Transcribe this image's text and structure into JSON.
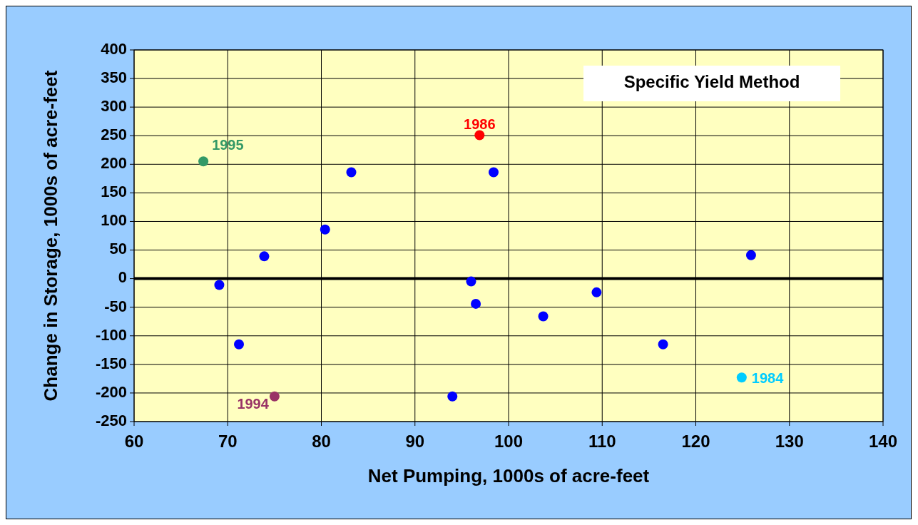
{
  "chart_data": {
    "type": "scatter",
    "xlabel": "Net Pumping, 1000s of acre-feet",
    "ylabel": "Change in Storage, 1000s of acre-feet",
    "annotations": [
      "Specific Yield Method"
    ],
    "xlim": [
      60,
      140
    ],
    "xticks": [
      60,
      70,
      80,
      90,
      100,
      110,
      120,
      130,
      140
    ],
    "ylim": [
      -250,
      400
    ],
    "yticks": [
      -250,
      -200,
      -150,
      -100,
      -50,
      0,
      50,
      100,
      150,
      200,
      250,
      300,
      350,
      400
    ],
    "grid": true,
    "marker": "circle",
    "ref_lines": [
      {
        "axis": "y",
        "value": 0,
        "color": "#000000"
      }
    ],
    "series": [
      {
        "color": "#0000ff",
        "x": [
          69.1,
          71.2,
          73.9,
          80.4,
          83.2,
          94.0,
          96.0,
          96.5,
          98.4,
          103.7,
          109.4,
          116.5,
          125.9
        ],
        "values": [
          -11,
          -115,
          39,
          86,
          186,
          -206,
          -5,
          -44,
          186,
          -66,
          -24,
          -115,
          41
        ]
      },
      {
        "name": "1995",
        "color": "#339966",
        "x": [
          67.4
        ],
        "values": [
          205
        ]
      },
      {
        "name": "1986",
        "color": "#ff0000",
        "x": [
          96.9
        ],
        "values": [
          251
        ]
      },
      {
        "name": "1994",
        "color": "#993366",
        "x": [
          75.0
        ],
        "values": [
          -206
        ]
      },
      {
        "name": "1984",
        "color": "#00ccff",
        "x": [
          124.9
        ],
        "values": [
          -173
        ]
      }
    ]
  }
}
